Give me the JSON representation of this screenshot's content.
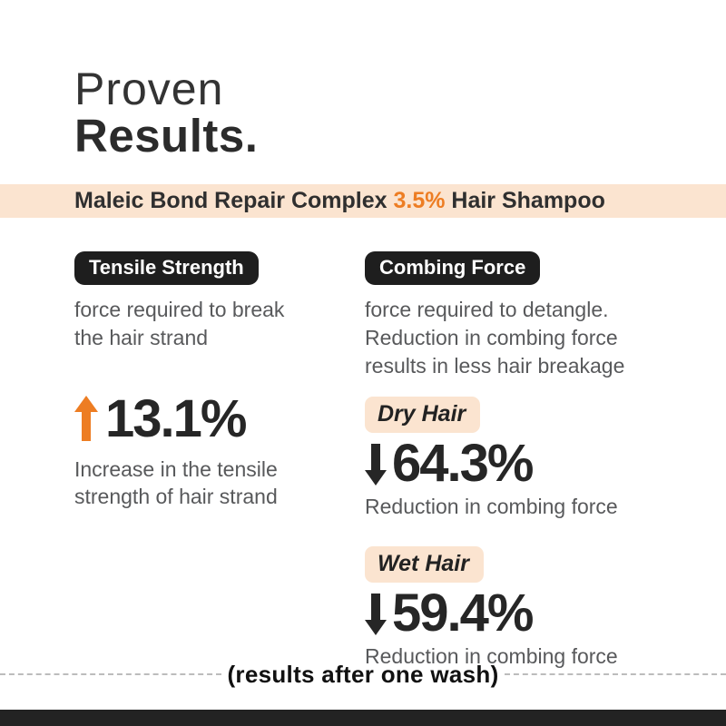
{
  "title": {
    "line1": "Proven",
    "line2": "Results."
  },
  "banner": {
    "prefix": "Maleic Bond Repair Complex ",
    "highlight": "3.5%",
    "suffix": " Hair Shampoo"
  },
  "left_column": {
    "badge": "Tensile Strength",
    "description_lines": [
      "force required to break",
      "the hair strand"
    ],
    "stat": {
      "direction": "up",
      "value": "13.1%",
      "caption_lines": [
        "Increase in the tensile",
        "strength of hair strand"
      ]
    }
  },
  "right_column": {
    "badge": "Combing Force",
    "description_lines": [
      "force required to detangle.",
      "Reduction in combing force",
      "results in less hair breakage"
    ],
    "stats": [
      {
        "label": "Dry Hair",
        "direction": "down",
        "value": "64.3%",
        "caption": "Reduction in combing force"
      },
      {
        "label": "Wet Hair",
        "direction": "down",
        "value": "59.4%",
        "caption": "Reduction in combing force"
      }
    ]
  },
  "footer": {
    "note": "(results after one wash)"
  },
  "colors": {
    "accent_orange": "#ed7d23",
    "peach": "#fbe4d0",
    "badge_dark": "#1e1e1e",
    "text_dark": "#282828",
    "text_gray": "#58595b",
    "bottom_bar": "#232323",
    "dashed_line": "#bcbcbc"
  }
}
